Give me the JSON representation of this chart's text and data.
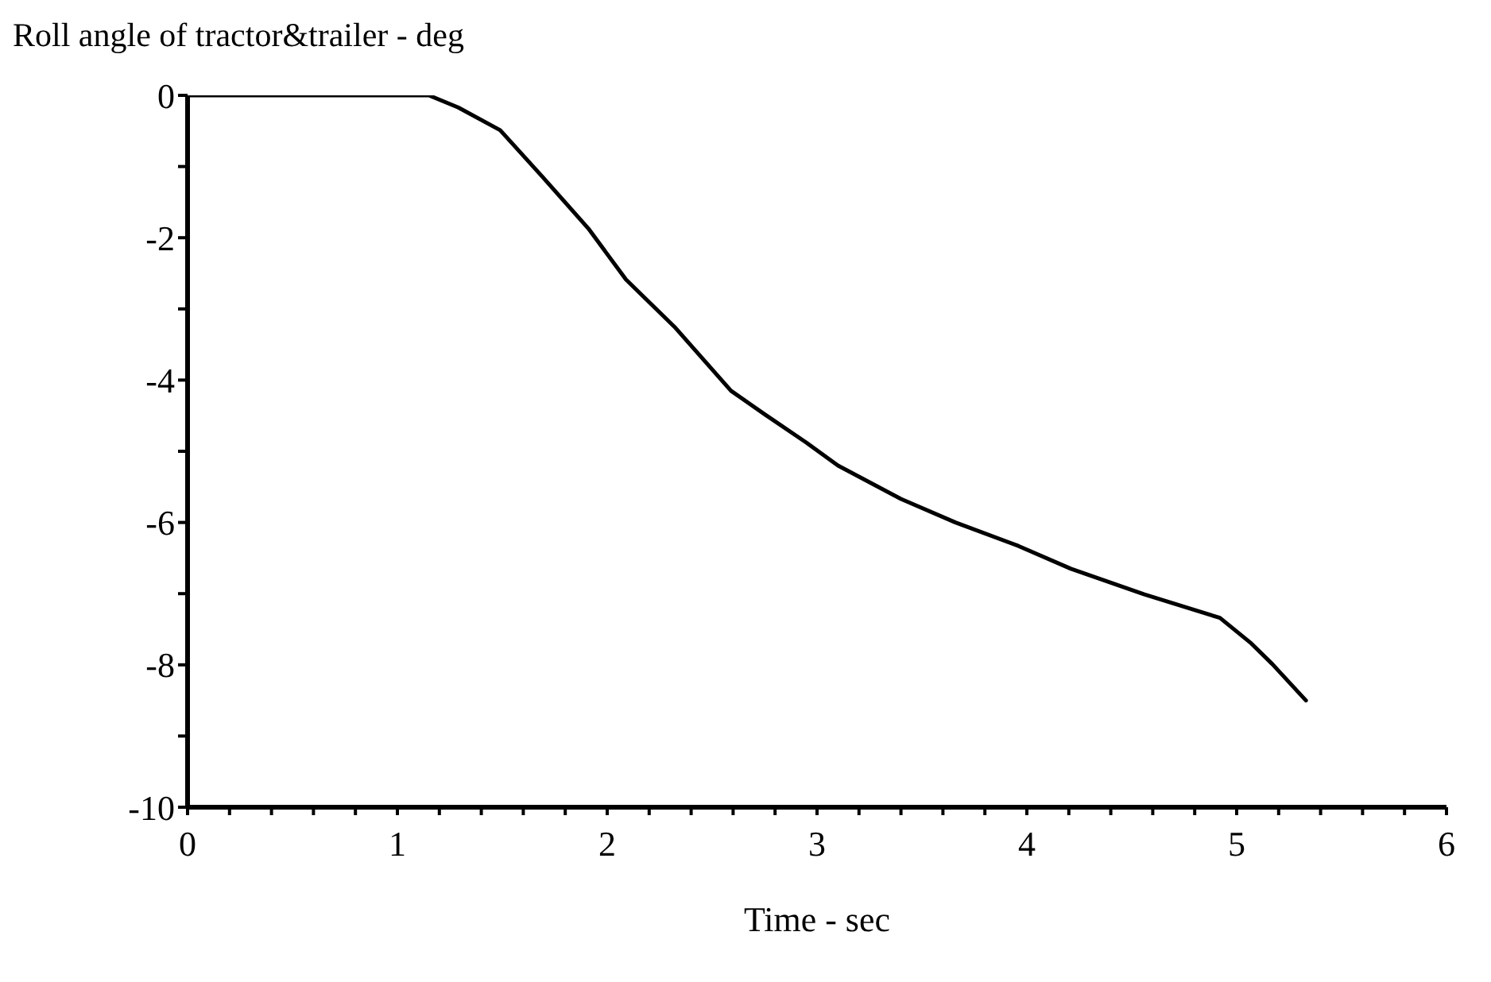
{
  "chart_data": {
    "type": "line",
    "xlabel": "Time - sec",
    "ylabel": "Roll angle of tractor&trailer - deg",
    "x": [
      0,
      1.15,
      1.29,
      1.49,
      1.69,
      1.91,
      2.09,
      2.32,
      2.59,
      2.75,
      2.95,
      3.1,
      3.4,
      3.66,
      3.96,
      4.21,
      4.56,
      4.92,
      5.07,
      5.17,
      5.33
    ],
    "series": [
      {
        "color": "#000000",
        "values": [
          0,
          0,
          -0.17,
          -0.49,
          -1.14,
          -1.87,
          -2.59,
          -3.25,
          -4.15,
          -4.48,
          -4.88,
          -5.2,
          -5.67,
          -6.0,
          -6.33,
          -6.65,
          -7.01,
          -7.34,
          -7.7,
          -7.99,
          -8.5
        ]
      }
    ],
    "xlim": [
      0,
      6
    ],
    "xticks": [
      0,
      {
        "value": 0.2,
        "label": null
      },
      {
        "value": 0.4,
        "label": null
      },
      {
        "value": 0.6,
        "label": null
      },
      {
        "value": 0.8,
        "label": null
      },
      1,
      {
        "value": 1.2,
        "label": null
      },
      {
        "value": 1.4,
        "label": null
      },
      {
        "value": 1.6,
        "label": null
      },
      {
        "value": 1.8,
        "label": null
      },
      2,
      {
        "value": 2.2,
        "label": null
      },
      {
        "value": 2.4,
        "label": null
      },
      {
        "value": 2.6,
        "label": null
      },
      {
        "value": 2.8,
        "label": null
      },
      3,
      {
        "value": 3.2,
        "label": null
      },
      {
        "value": 3.4,
        "label": null
      },
      {
        "value": 3.6,
        "label": null
      },
      {
        "value": 3.8,
        "label": null
      },
      4,
      {
        "value": 4.2,
        "label": null
      },
      {
        "value": 4.4,
        "label": null
      },
      {
        "value": 4.6,
        "label": null
      },
      {
        "value": 4.8,
        "label": null
      },
      5,
      {
        "value": 5.2,
        "label": null
      },
      {
        "value": 5.4,
        "label": null
      },
      {
        "value": 5.6,
        "label": null
      },
      {
        "value": 5.8,
        "label": null
      },
      6
    ],
    "ylim": [
      -10,
      0
    ],
    "yticks": [
      -10,
      {
        "value": -9,
        "label": null
      },
      -8,
      {
        "value": -7,
        "label": null
      },
      -6,
      {
        "value": -5,
        "label": null
      },
      -4,
      {
        "value": -3,
        "label": null
      },
      -2,
      {
        "value": -1,
        "label": null
      },
      0
    ],
    "grid": false,
    "legend": false,
    "marker": "none",
    "line_style": "solid"
  }
}
